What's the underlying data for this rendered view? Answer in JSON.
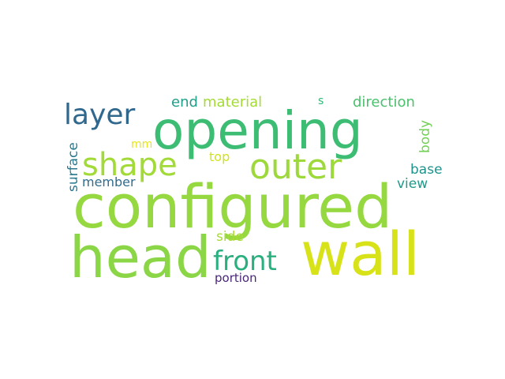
{
  "word_cloud": {
    "words": [
      {
        "text": "configured",
        "color": "#95d840"
      },
      {
        "text": "head",
        "color": "#8bd646"
      },
      {
        "text": "opening",
        "color": "#3dbc74"
      },
      {
        "text": "wall",
        "color": "#d8e219"
      },
      {
        "text": "outer",
        "color": "#9dd93b"
      },
      {
        "text": "shape",
        "color": "#a2da37"
      },
      {
        "text": "layer",
        "color": "#31688e"
      },
      {
        "text": "front",
        "color": "#2ab07f"
      },
      {
        "text": "material",
        "color": "#a5db36"
      },
      {
        "text": "direction",
        "color": "#4ac16d"
      },
      {
        "text": "end",
        "color": "#1f9e89"
      },
      {
        "text": "surface",
        "color": "#2a788e"
      },
      {
        "text": "body",
        "color": "#73d056"
      },
      {
        "text": "base",
        "color": "#20928c"
      },
      {
        "text": "view",
        "color": "#1f9a8a"
      },
      {
        "text": "member",
        "color": "#2f6c8e"
      },
      {
        "text": "top",
        "color": "#d2e21b"
      },
      {
        "text": "mm",
        "color": "#e7e419"
      },
      {
        "text": "side",
        "color": "#a8db34"
      },
      {
        "text": "portion",
        "color": "#482677"
      },
      {
        "text": "s",
        "color": "#35b779"
      }
    ]
  }
}
